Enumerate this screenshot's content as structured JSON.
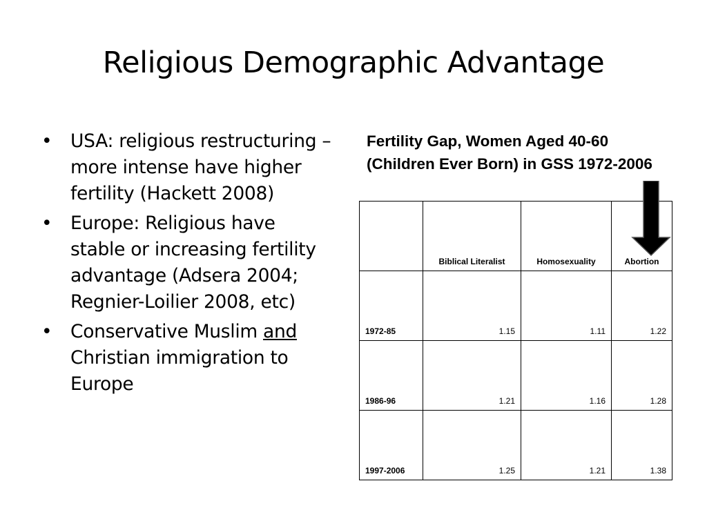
{
  "slide": {
    "title": "Religious Demographic Advantage",
    "bullets": {
      "b1": "USA: religious restructuring – more intense have higher fertility (Hackett 2008)",
      "b2": "Europe: Religious have stable or increasing fertility advantage (Adsera 2004; Regnier-Loilier 2008, etc)",
      "b3_part1": "Conservative Muslim ",
      "b3_underlined": "and",
      "b3_part2": " Christian immigration to Europe"
    }
  },
  "table": {
    "title": "Fertility Gap, Women Aged 40-60 (Children Ever Born) in GSS 1972-2006",
    "headers": [
      "",
      "Biblical Literalist",
      "Homosexuality",
      "Abortion"
    ],
    "rows": [
      {
        "label": "1972-85",
        "values": [
          "1.15",
          "1.11",
          "1.22"
        ]
      },
      {
        "label": "1986-96",
        "values": [
          "1.21",
          "1.16",
          "1.28"
        ]
      },
      {
        "label": "1997-2006",
        "values": [
          "1.25",
          "1.21",
          "1.38"
        ]
      }
    ]
  },
  "colors": {
    "text": "#000000",
    "background": "#ffffff",
    "arrow": "#000000"
  },
  "icons": {
    "arrow": "down-arrow-icon"
  }
}
